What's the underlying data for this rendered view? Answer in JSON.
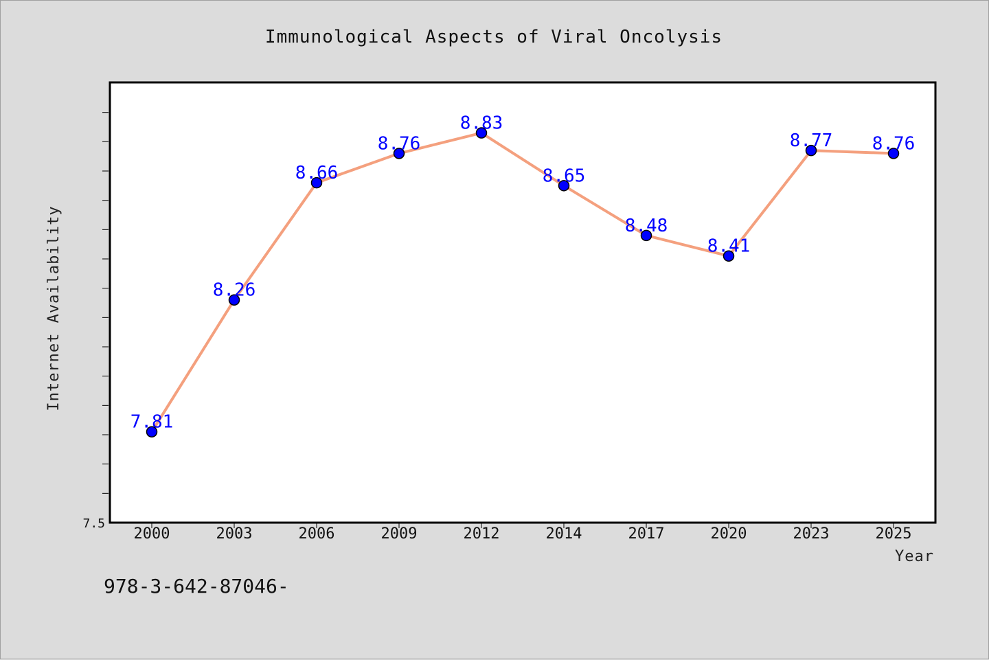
{
  "chart_data": {
    "type": "line",
    "title": "Immunological Aspects of Viral Oncolysis",
    "xlabel": "Year",
    "ylabel": "Internet Availability",
    "categories": [
      "2000",
      "2003",
      "2006",
      "2009",
      "2012",
      "2014",
      "2017",
      "2020",
      "2023",
      "2025"
    ],
    "series": [
      {
        "values": [
          7.81,
          8.26,
          8.66,
          8.76,
          8.83,
          8.65,
          8.48,
          8.41,
          8.77,
          8.76
        ],
        "labels": [
          "7.81",
          "8.26",
          "8.66",
          "8.76",
          "8.83",
          "8.65",
          "8.48",
          "8.41",
          "8.77",
          "8.76"
        ]
      }
    ],
    "ylim": [
      7.5,
      9.0
    ],
    "y_tick_labels": [
      "7.5"
    ],
    "grid": false,
    "colors": {
      "line": "#f4a07e",
      "marker": "#0000ff",
      "data_label": "#0000ff",
      "background": "#dcdcdc",
      "plot_area": "#ffffff"
    }
  },
  "footer": {
    "text": "978-3-642-87046-"
  }
}
